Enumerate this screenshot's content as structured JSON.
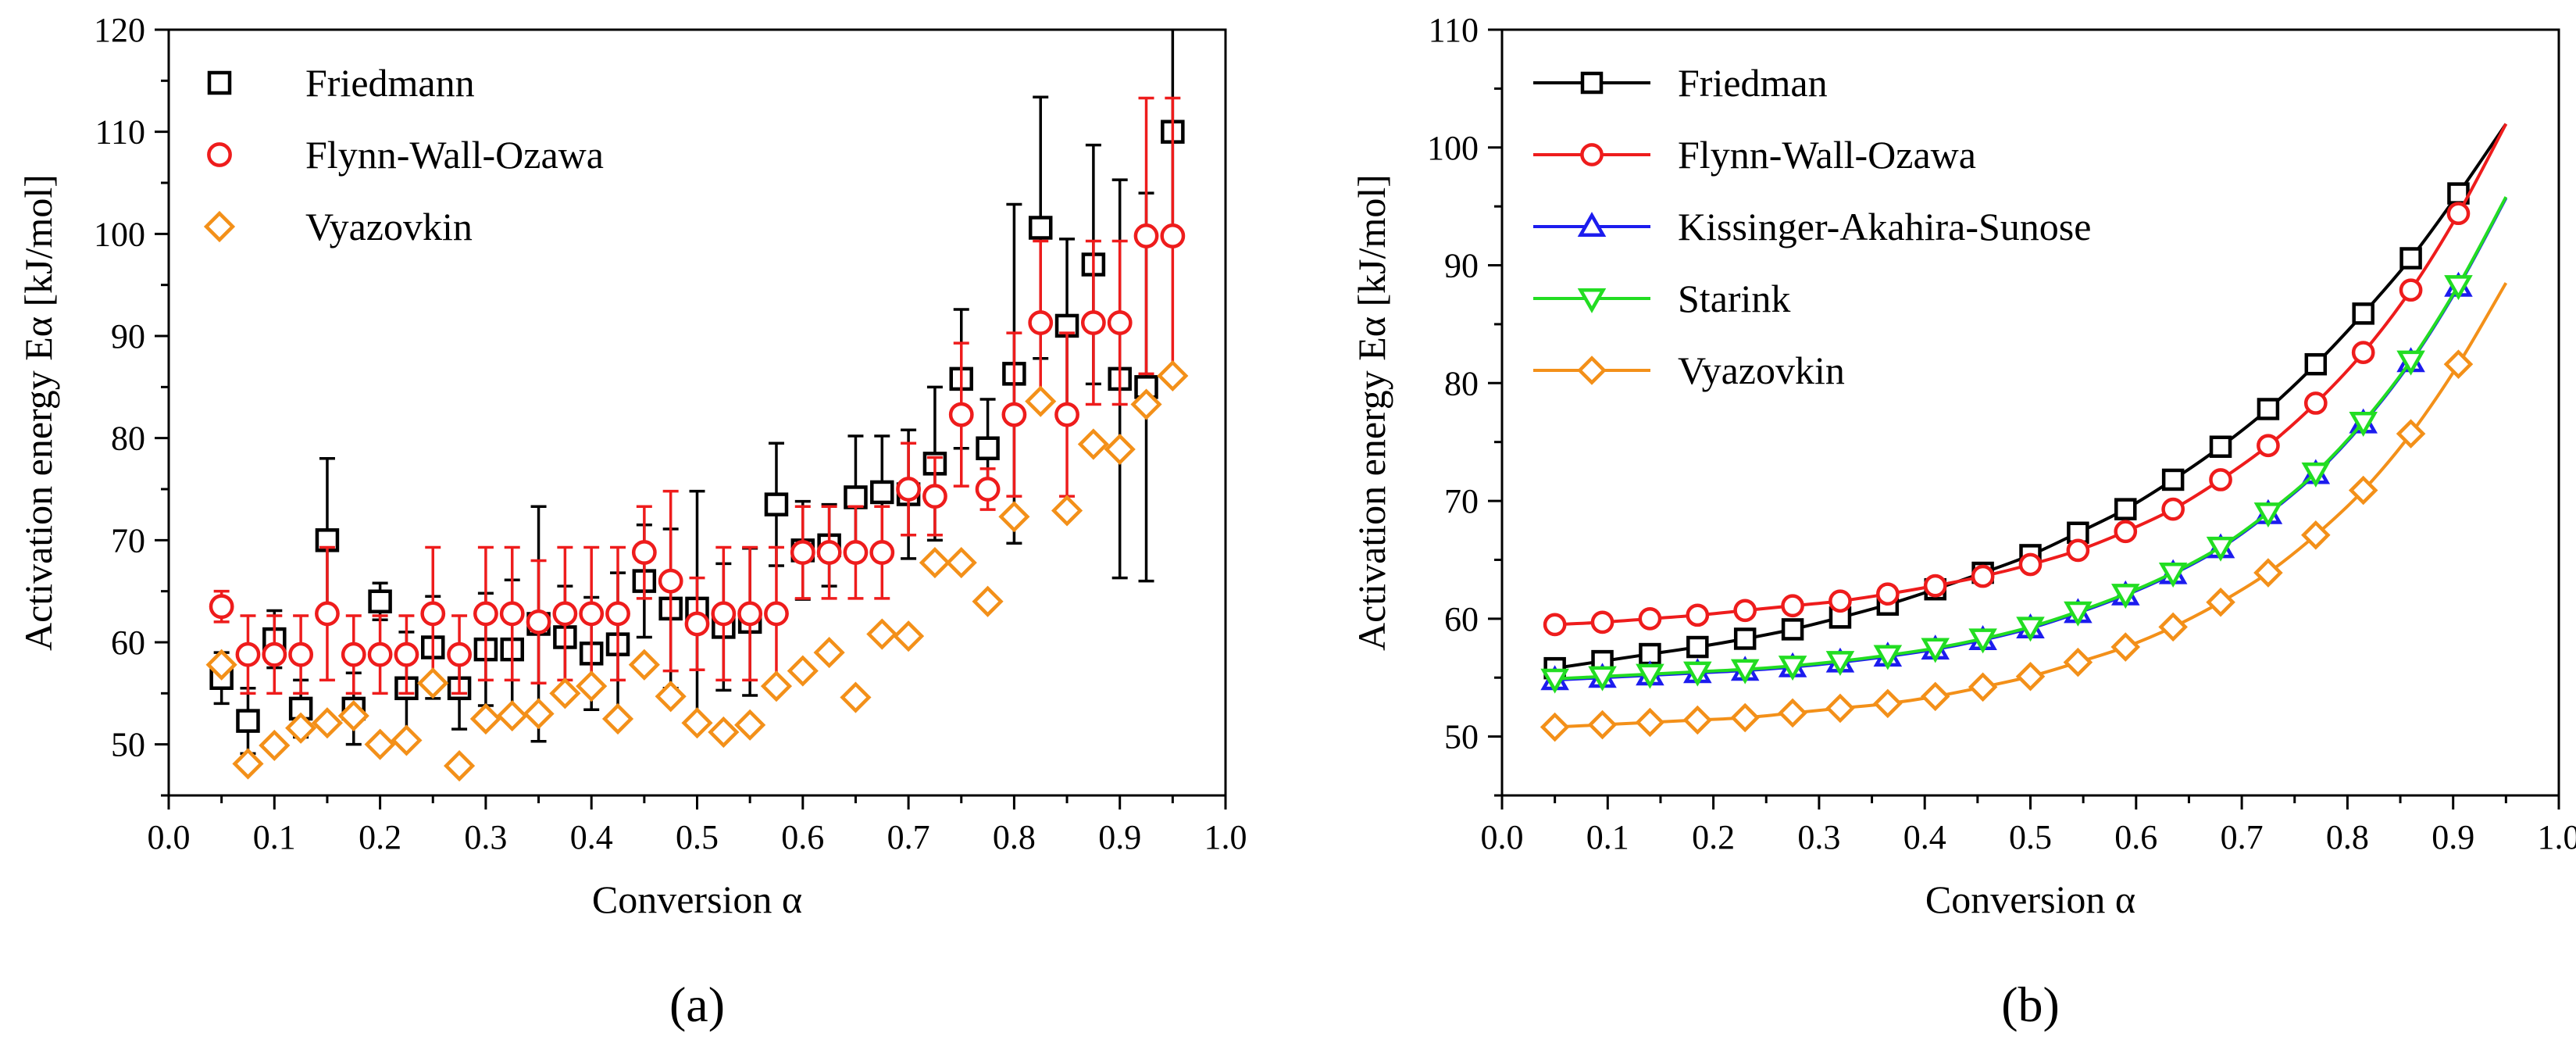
{
  "chart_data": [
    {
      "type": "scatter",
      "panel_label": "(a)",
      "xlabel": "Conversion α",
      "ylabel": "Activation energy Eα [kJ/mol]",
      "xlim": [
        0.0,
        1.0
      ],
      "ylim": [
        45,
        120
      ],
      "xticks": [
        0.0,
        0.1,
        0.2,
        0.3,
        0.4,
        0.5,
        0.6,
        0.7,
        0.8,
        0.9,
        1.0
      ],
      "yticks": [
        50,
        60,
        70,
        80,
        90,
        100,
        110,
        120
      ],
      "legend_position": "top-left",
      "series": [
        {
          "name": "Friedmann",
          "color": "#000000",
          "marker": "square",
          "x": [
            0.05,
            0.075,
            0.1,
            0.125,
            0.15,
            0.175,
            0.2,
            0.225,
            0.25,
            0.275,
            0.3,
            0.325,
            0.35,
            0.375,
            0.4,
            0.425,
            0.45,
            0.475,
            0.5,
            0.525,
            0.55,
            0.575,
            0.6,
            0.625,
            0.65,
            0.675,
            0.7,
            0.725,
            0.75,
            0.775,
            0.8,
            0.825,
            0.85,
            0.875,
            0.9,
            0.925,
            0.95
          ],
          "y": [
            56.5,
            52.3,
            60.3,
            53.5,
            70.0,
            53.5,
            64.0,
            55.5,
            59.5,
            55.5,
            59.3,
            59.3,
            61.8,
            60.5,
            58.9,
            59.8,
            66.0,
            63.3,
            63.3,
            61.5,
            62.0,
            73.5,
            69.0,
            69.5,
            74.2,
            74.7,
            74.5,
            77.5,
            85.8,
            79.0,
            86.3,
            100.6,
            91.0,
            97.0,
            85.8,
            85.0,
            110.0
          ],
          "err": [
            2.5,
            3.2,
            2.8,
            2.8,
            8.0,
            3.5,
            1.8,
            5.5,
            5.0,
            4.0,
            5.5,
            6.8,
            11.5,
            5.0,
            5.5,
            7.0,
            5.5,
            7.8,
            11.5,
            6.2,
            7.2,
            6.0,
            4.8,
            4.0,
            6.0,
            5.5,
            6.3,
            7.5,
            6.8,
            4.8,
            16.6,
            12.8,
            8.5,
            11.7,
            19.5,
            19.0,
            11.0
          ]
        },
        {
          "name": "Flynn-Wall-Ozawa",
          "color": "#ee1c1c",
          "marker": "circle",
          "x": [
            0.05,
            0.075,
            0.1,
            0.125,
            0.15,
            0.175,
            0.2,
            0.225,
            0.25,
            0.275,
            0.3,
            0.325,
            0.35,
            0.375,
            0.4,
            0.425,
            0.45,
            0.475,
            0.5,
            0.525,
            0.55,
            0.575,
            0.6,
            0.625,
            0.65,
            0.675,
            0.7,
            0.725,
            0.75,
            0.775,
            0.8,
            0.825,
            0.85,
            0.875,
            0.9,
            0.925,
            0.95
          ],
          "y": [
            63.5,
            58.8,
            58.8,
            58.8,
            62.8,
            58.8,
            58.8,
            58.8,
            62.8,
            58.8,
            62.8,
            62.8,
            62.0,
            62.8,
            62.8,
            62.8,
            68.8,
            66.0,
            61.8,
            62.8,
            62.8,
            62.8,
            68.8,
            68.8,
            68.8,
            68.8,
            75.0,
            74.3,
            82.3,
            75.0,
            82.3,
            91.3,
            82.3,
            91.3,
            91.3,
            99.8,
            99.8
          ],
          "err": [
            1.5,
            3.8,
            3.8,
            3.8,
            6.5,
            3.8,
            3.8,
            3.8,
            6.5,
            3.8,
            6.5,
            6.5,
            6.0,
            6.5,
            6.5,
            6.5,
            4.5,
            8.8,
            4.5,
            6.5,
            6.5,
            6.5,
            4.5,
            4.5,
            4.5,
            4.5,
            4.5,
            3.8,
            7.0,
            2.0,
            8.0,
            8.0,
            8.0,
            8.0,
            8.0,
            13.5,
            13.5
          ]
        },
        {
          "name": "Vyazovkin",
          "color": "#f39019",
          "marker": "diamond",
          "x": [
            0.05,
            0.075,
            0.1,
            0.125,
            0.15,
            0.175,
            0.2,
            0.225,
            0.25,
            0.275,
            0.3,
            0.325,
            0.35,
            0.375,
            0.4,
            0.425,
            0.45,
            0.475,
            0.5,
            0.525,
            0.55,
            0.575,
            0.6,
            0.625,
            0.65,
            0.675,
            0.7,
            0.725,
            0.75,
            0.775,
            0.8,
            0.825,
            0.85,
            0.875,
            0.9,
            0.925,
            0.95
          ],
          "y": [
            57.8,
            48.1,
            49.9,
            51.6,
            52.1,
            52.8,
            50.0,
            50.4,
            56.0,
            47.9,
            52.5,
            52.8,
            53.0,
            55.0,
            55.7,
            52.5,
            57.8,
            54.7,
            52.1,
            51.2,
            51.9,
            55.7,
            57.2,
            59.0,
            54.6,
            60.8,
            60.6,
            67.8,
            67.8,
            64.0,
            72.3,
            83.6,
            72.9,
            79.4,
            78.9,
            83.3,
            86.1
          ]
        }
      ]
    },
    {
      "type": "line",
      "panel_label": "(b)",
      "xlabel": "Conversion α",
      "ylabel": "Activation energy Eα [kJ/mol]",
      "xlim": [
        0.0,
        1.0
      ],
      "ylim": [
        45,
        110
      ],
      "xticks": [
        0.0,
        0.1,
        0.2,
        0.3,
        0.4,
        0.5,
        0.6,
        0.7,
        0.8,
        0.9,
        1.0
      ],
      "yticks": [
        50,
        60,
        70,
        80,
        90,
        100,
        110
      ],
      "legend_position": "top-left",
      "x": [
        0.05,
        0.095,
        0.14,
        0.185,
        0.23,
        0.275,
        0.32,
        0.365,
        0.41,
        0.455,
        0.5,
        0.545,
        0.59,
        0.635,
        0.68,
        0.725,
        0.77,
        0.815,
        0.86,
        0.905,
        0.95
      ],
      "series": [
        {
          "name": "Friedman",
          "color": "#000000",
          "marker": "square",
          "values": [
            55.8,
            56.4,
            57.0,
            57.6,
            58.3,
            59.1,
            60.1,
            61.2,
            62.5,
            63.9,
            65.4,
            67.3,
            69.3,
            71.8,
            74.6,
            77.8,
            81.6,
            85.9,
            90.6,
            96.1,
            102.0
          ]
        },
        {
          "name": "Flynn-Wall-Ozawa",
          "color": "#ee1c1c",
          "marker": "circle",
          "values": [
            59.5,
            59.7,
            60.0,
            60.3,
            60.7,
            61.1,
            61.5,
            62.1,
            62.8,
            63.6,
            64.6,
            65.8,
            67.4,
            69.3,
            71.8,
            74.7,
            78.3,
            82.6,
            87.9,
            94.4,
            102.0
          ]
        },
        {
          "name": "Kissinger-Akahira-Sunose",
          "color": "#1c1cee",
          "marker": "triangle-up",
          "values": [
            54.8,
            55.0,
            55.2,
            55.4,
            55.6,
            55.9,
            56.3,
            56.8,
            57.4,
            58.2,
            59.2,
            60.5,
            62.0,
            63.8,
            66.0,
            68.9,
            72.3,
            76.6,
            81.8,
            88.2,
            95.7
          ]
        },
        {
          "name": "Starink",
          "color": "#22dd22",
          "marker": "triangle-down",
          "values": [
            54.9,
            55.1,
            55.3,
            55.5,
            55.7,
            56.0,
            56.4,
            56.9,
            57.5,
            58.3,
            59.3,
            60.6,
            62.1,
            63.9,
            66.1,
            69.0,
            72.4,
            76.7,
            81.9,
            88.3,
            95.8
          ]
        },
        {
          "name": "Vyazovkin",
          "color": "#f39019",
          "marker": "diamond",
          "values": [
            50.8,
            51.0,
            51.2,
            51.4,
            51.6,
            52.0,
            52.4,
            52.8,
            53.4,
            54.2,
            55.1,
            56.3,
            57.6,
            59.3,
            61.4,
            63.9,
            67.1,
            70.9,
            75.7,
            81.6,
            88.5
          ]
        }
      ]
    }
  ]
}
